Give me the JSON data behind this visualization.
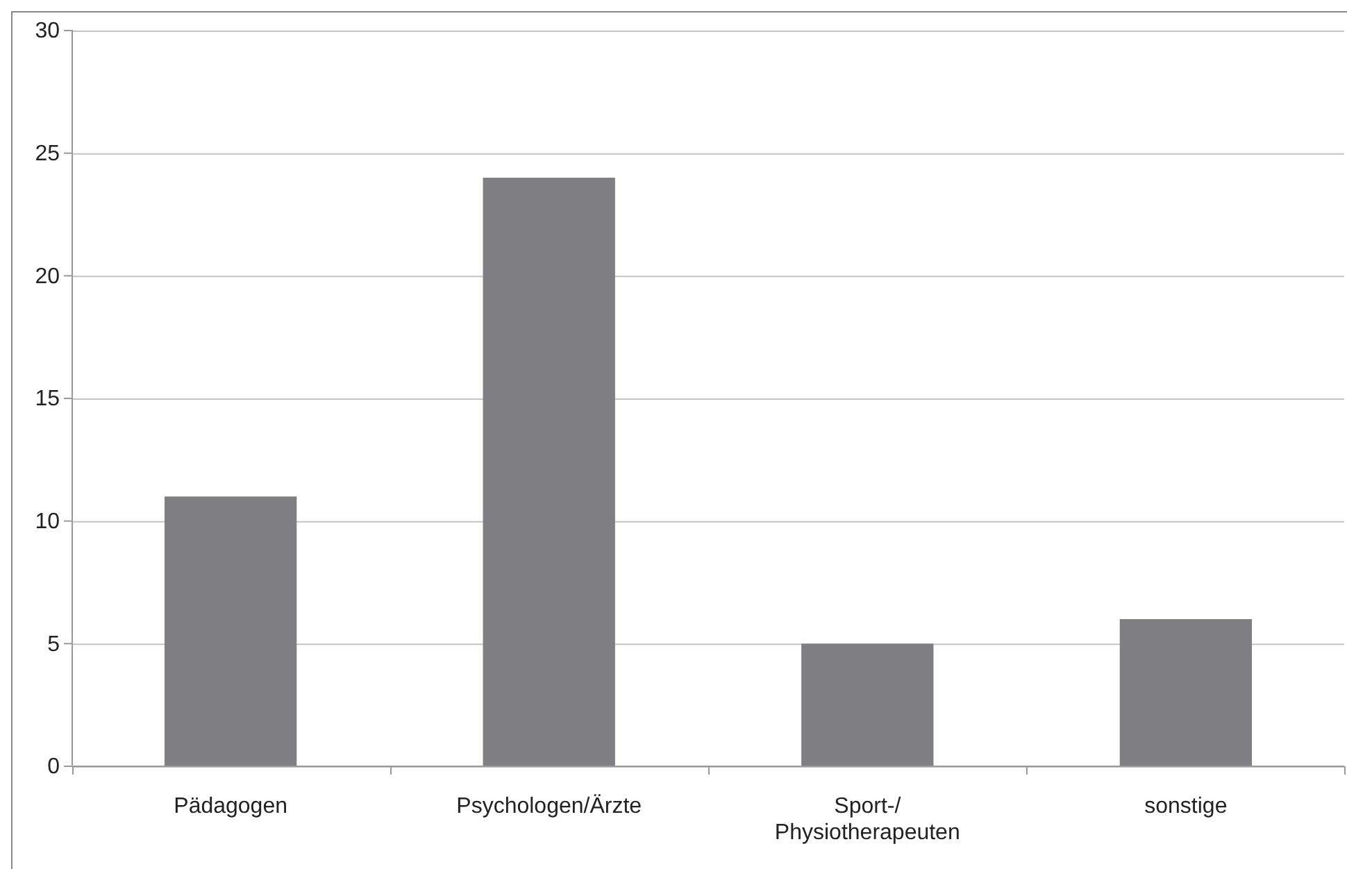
{
  "chart_data": {
    "type": "bar",
    "categories": [
      "Pädagogen",
      "Psychologen/Ärzte",
      "Sport-/Physiotherapeuten",
      "sonstige"
    ],
    "values": [
      11,
      24,
      5,
      6
    ],
    "color": "#7f7f83",
    "ylim": [
      0,
      30
    ],
    "yticks": [
      0,
      5,
      10,
      15,
      20,
      25,
      30
    ],
    "grid": "y"
  }
}
